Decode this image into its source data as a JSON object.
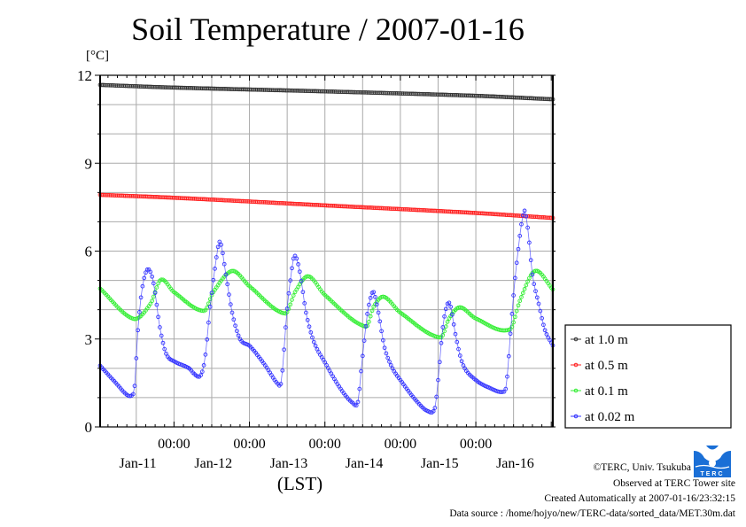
{
  "chart_data": {
    "type": "line",
    "title": "Soil Temperature / 2007-01-16",
    "ylabel": "[°C]",
    "xlabel": "(LST)",
    "ylim": [
      0,
      12
    ],
    "yticks": [
      "0",
      "3",
      "6",
      "9",
      "12"
    ],
    "ytick_values": [
      0,
      3,
      6,
      9,
      12
    ],
    "grid": true,
    "x_unit": "hours since 2007-01-11 00:00 LST",
    "xlim": [
      -23.5,
      120.5
    ],
    "xticks": [
      {
        "hours": 0,
        "time": "00:00",
        "date": "Jan-11"
      },
      {
        "hours": 24,
        "time": "00:00",
        "date": "Jan-12"
      },
      {
        "hours": 48,
        "time": "00:00",
        "date": "Jan-13"
      },
      {
        "hours": 72,
        "time": "00:00",
        "date": "Jan-14"
      },
      {
        "hours": 96,
        "time": "00:00",
        "date": "Jan-15"
      }
    ],
    "date_labels": [
      {
        "hours": -11.5,
        "label": "Jan-11"
      },
      {
        "hours": 12.5,
        "label": "Jan-12"
      },
      {
        "hours": 36.5,
        "label": "Jan-13"
      },
      {
        "hours": 60.5,
        "label": "Jan-14"
      },
      {
        "hours": 84.5,
        "label": "Jan-15"
      },
      {
        "hours": 108.5,
        "label": "Jan-16"
      }
    ],
    "sample_interval_hours": 0.5,
    "legend_position": "right",
    "series": [
      {
        "name": "at 1.0 m",
        "color": "#333333",
        "anchors": [
          [
            -23.5,
            11.67
          ],
          [
            0,
            11.58
          ],
          [
            48,
            11.45
          ],
          [
            96,
            11.3
          ],
          [
            120.5,
            11.18
          ]
        ]
      },
      {
        "name": "at 0.5 m",
        "color": "#ff2020",
        "anchors": [
          [
            -23.5,
            7.92
          ],
          [
            0,
            7.82
          ],
          [
            48,
            7.56
          ],
          [
            96,
            7.3
          ],
          [
            120.5,
            7.13
          ]
        ]
      },
      {
        "name": "at 0.1 m",
        "color": "#33ee33",
        "anchors": [
          [
            -23.5,
            4.72
          ],
          [
            -12.9,
            3.69
          ],
          [
            -7.5,
            4.2
          ],
          [
            -4.2,
            5.02
          ],
          [
            0,
            4.6
          ],
          [
            9.6,
            3.96
          ],
          [
            12.5,
            4.6
          ],
          [
            18.5,
            5.32
          ],
          [
            24,
            4.8
          ],
          [
            35.4,
            3.87
          ],
          [
            38.5,
            4.6
          ],
          [
            42.7,
            5.14
          ],
          [
            48,
            4.5
          ],
          [
            61.1,
            3.42
          ],
          [
            63.5,
            4.1
          ],
          [
            66.7,
            4.44
          ],
          [
            72,
            3.9
          ],
          [
            84.8,
            3.05
          ],
          [
            87.5,
            3.7
          ],
          [
            90.9,
            4.08
          ],
          [
            96,
            3.7
          ],
          [
            106.9,
            3.33
          ],
          [
            110,
            4.3
          ],
          [
            114.8,
            5.32
          ],
          [
            120.5,
            4.69
          ]
        ]
      },
      {
        "name": "at 0.02 m",
        "color": "#3333ff",
        "anchors": [
          [
            -23.5,
            2.09
          ],
          [
            -18.5,
            1.5
          ],
          [
            -14.9,
            1.09
          ],
          [
            -13.2,
            1.1
          ],
          [
            -12.5,
            1.4
          ],
          [
            -11.5,
            3.3
          ],
          [
            -10.0,
            4.8
          ],
          [
            -8.3,
            5.38
          ],
          [
            -6.5,
            4.9
          ],
          [
            -4.5,
            3.4
          ],
          [
            -2.5,
            2.5
          ],
          [
            0,
            2.24
          ],
          [
            4.8,
            2.0
          ],
          [
            6.5,
            1.8
          ],
          [
            8.4,
            1.75
          ],
          [
            9.8,
            2.3
          ],
          [
            11.5,
            4.1
          ],
          [
            13.0,
            5.4
          ],
          [
            14.6,
            6.32
          ],
          [
            16.5,
            5.2
          ],
          [
            18.5,
            3.9
          ],
          [
            21.0,
            3.0
          ],
          [
            24.2,
            2.75
          ],
          [
            29,
            2.1
          ],
          [
            33.2,
            1.45
          ],
          [
            34.2,
            1.6
          ],
          [
            35.8,
            3.8
          ],
          [
            37.0,
            5.0
          ],
          [
            38.3,
            5.83
          ],
          [
            40.0,
            5.3
          ],
          [
            42.0,
            3.9
          ],
          [
            44.5,
            2.9
          ],
          [
            48,
            2.2
          ],
          [
            53,
            1.3
          ],
          [
            56.8,
            0.82
          ],
          [
            58.5,
            0.85
          ],
          [
            59.5,
            1.9
          ],
          [
            61.3,
            3.7
          ],
          [
            62.5,
            4.4
          ],
          [
            63.5,
            4.6
          ],
          [
            65.0,
            3.9
          ],
          [
            67.0,
            2.7
          ],
          [
            69.5,
            2.0
          ],
          [
            72,
            1.6
          ],
          [
            77,
            0.9
          ],
          [
            80.7,
            0.54
          ],
          [
            83.0,
            0.65
          ],
          [
            84.0,
            1.6
          ],
          [
            85.5,
            3.4
          ],
          [
            87.0,
            4.2
          ],
          [
            88.0,
            4.1
          ],
          [
            89.8,
            3.0
          ],
          [
            92.0,
            2.1
          ],
          [
            96,
            1.6
          ],
          [
            100,
            1.35
          ],
          [
            104.8,
            1.2
          ],
          [
            105.8,
            1.5
          ],
          [
            107.3,
            3.6
          ],
          [
            109.0,
            5.6
          ],
          [
            111.3,
            7.35
          ],
          [
            112.5,
            6.8
          ],
          [
            114.0,
            5.2
          ],
          [
            116.0,
            4.2
          ],
          [
            118.0,
            3.3
          ],
          [
            120.5,
            2.78
          ]
        ]
      }
    ]
  },
  "footer": {
    "copyright": "©TERC, Univ. Tsukuba",
    "observed": "Observed at TERC Tower site",
    "created": "Created Automatically at 2007-01-16/23:32:15",
    "source": "Data source : /home/hojyo/new/TERC-data/sorted_data/MET.30m.dat"
  },
  "logo": {
    "text": "TERC"
  }
}
